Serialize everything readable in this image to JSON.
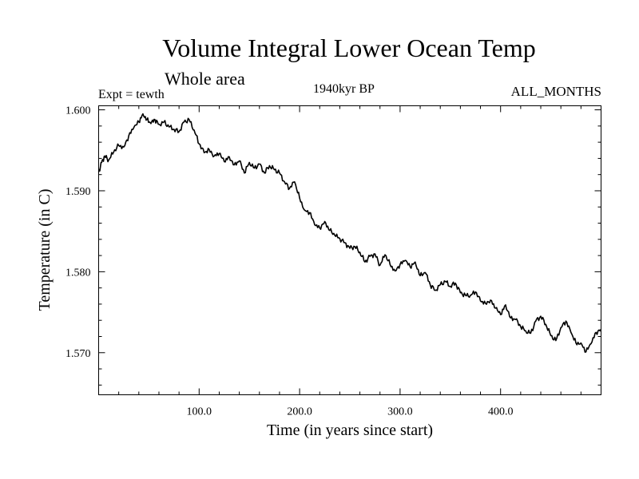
{
  "chart_data": {
    "type": "line",
    "title": "Volume Integral Lower Ocean Temp",
    "subtitle": "Whole area",
    "experiment": "Expt = tewth",
    "period": "1940kyr BP",
    "months": "ALL_MONTHS",
    "xlabel": "Time (in years since start)",
    "ylabel": "Temperature (in C)",
    "xlim": [
      0,
      500
    ],
    "ylim": [
      1.5648,
      1.6005
    ],
    "xticks": [
      100,
      200,
      300,
      400
    ],
    "xtick_labels": [
      "100.0",
      "200.0",
      "300.0",
      "400.0"
    ],
    "yticks": [
      1.57,
      1.58,
      1.59,
      1.6
    ],
    "ytick_labels": [
      "1.570",
      "1.580",
      "1.590",
      "1.600"
    ],
    "grid": false,
    "series": [
      {
        "name": "Volume Integral Lower Ocean Temp",
        "color": "#000000",
        "x": [
          0,
          3,
          6,
          10,
          15,
          20,
          25,
          30,
          35,
          40,
          44,
          48,
          52,
          56,
          60,
          65,
          70,
          75,
          80,
          85,
          90,
          95,
          100,
          105,
          110,
          115,
          120,
          125,
          130,
          135,
          140,
          145,
          150,
          155,
          160,
          165,
          170,
          175,
          180,
          185,
          190,
          195,
          200,
          205,
          210,
          215,
          220,
          225,
          230,
          235,
          240,
          245,
          250,
          255,
          260,
          265,
          270,
          275,
          280,
          285,
          290,
          295,
          300,
          305,
          310,
          315,
          320,
          325,
          330,
          335,
          340,
          345,
          350,
          355,
          360,
          365,
          370,
          375,
          380,
          385,
          390,
          395,
          400,
          405,
          410,
          415,
          420,
          425,
          430,
          435,
          440,
          445,
          450,
          455,
          460,
          465,
          470,
          475,
          480,
          485,
          490,
          495,
          500
        ],
        "y": [
          1.5923,
          1.5935,
          1.5943,
          1.5938,
          1.5948,
          1.5956,
          1.5954,
          1.5968,
          1.5978,
          1.5985,
          1.5995,
          1.5988,
          1.5983,
          1.5988,
          1.5982,
          1.5985,
          1.5979,
          1.5976,
          1.5973,
          1.5985,
          1.5988,
          1.5975,
          1.5958,
          1.5947,
          1.5951,
          1.5943,
          1.5946,
          1.5936,
          1.5942,
          1.5932,
          1.5937,
          1.5922,
          1.5935,
          1.5928,
          1.5933,
          1.5922,
          1.5931,
          1.5926,
          1.5922,
          1.5911,
          1.5903,
          1.5911,
          1.5891,
          1.5876,
          1.5873,
          1.5858,
          1.5854,
          1.5862,
          1.5851,
          1.5845,
          1.5841,
          1.5836,
          1.5829,
          1.5831,
          1.5824,
          1.5812,
          1.5819,
          1.5822,
          1.5808,
          1.5821,
          1.5809,
          1.5801,
          1.5809,
          1.5814,
          1.5806,
          1.5812,
          1.5795,
          1.5799,
          1.5784,
          1.5777,
          1.5784,
          1.5788,
          1.5782,
          1.5786,
          1.5774,
          1.5771,
          1.5771,
          1.5775,
          1.5764,
          1.5761,
          1.5765,
          1.5755,
          1.5747,
          1.5759,
          1.5743,
          1.5741,
          1.5732,
          1.5727,
          1.5724,
          1.5739,
          1.5745,
          1.5735,
          1.5721,
          1.5715,
          1.5731,
          1.5739,
          1.5725,
          1.5712,
          1.5712,
          1.5701,
          1.5711,
          1.5725,
          1.5729
        ]
      }
    ]
  }
}
